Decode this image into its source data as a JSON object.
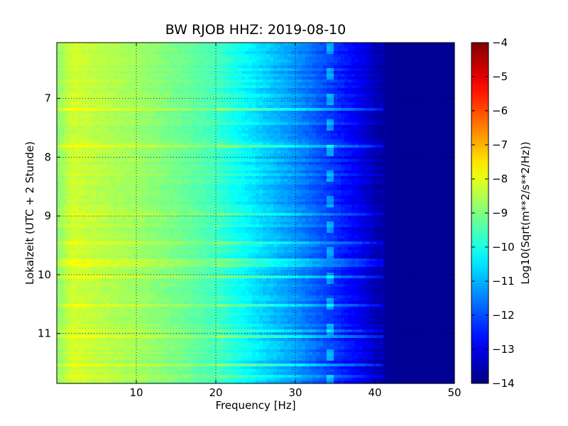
{
  "chart_data": {
    "type": "heatmap",
    "title": "BW RJOB HHZ: 2019-08-10",
    "xlabel": "Frequency [Hz]",
    "ylabel": "Lokalzeit (UTC + 2 Stunde)",
    "colorbar_label": "Log10(Sqrt(m**2/s**2/Hz))",
    "x_range": [
      0,
      50
    ],
    "y_range": [
      6.05,
      11.85
    ],
    "y_inverted": true,
    "x_ticks": [
      10,
      20,
      30,
      40,
      50
    ],
    "x_tick_labels": [
      "10",
      "20",
      "30",
      "40",
      "50"
    ],
    "y_ticks": [
      7,
      8,
      9,
      10,
      11
    ],
    "y_tick_labels": [
      "7",
      "8",
      "9",
      "10",
      "11"
    ],
    "color_range": [
      -14,
      -4
    ],
    "colorbar_ticks": [
      -4,
      -5,
      -6,
      -7,
      -8,
      -9,
      -10,
      -11,
      -12,
      -13,
      -14
    ],
    "colorbar_tick_labels": [
      "−4",
      "−5",
      "−6",
      "−7",
      "−8",
      "−9",
      "−10",
      "−11",
      "−12",
      "−13",
      "−14"
    ],
    "colormap": "jet",
    "grid": "dotted",
    "spectrum_profile": {
      "frequency_hz": [
        0,
        2,
        5,
        10,
        15,
        20,
        25,
        30,
        35,
        38,
        40,
        42,
        50
      ],
      "log_amplitude": [
        -8.9,
        -8.2,
        -8.4,
        -8.7,
        -9.1,
        -9.6,
        -10.5,
        -11.3,
        -12.3,
        -12.9,
        -13.4,
        -13.8,
        -13.8
      ]
    },
    "tonal_line_hz": 34.5
  }
}
